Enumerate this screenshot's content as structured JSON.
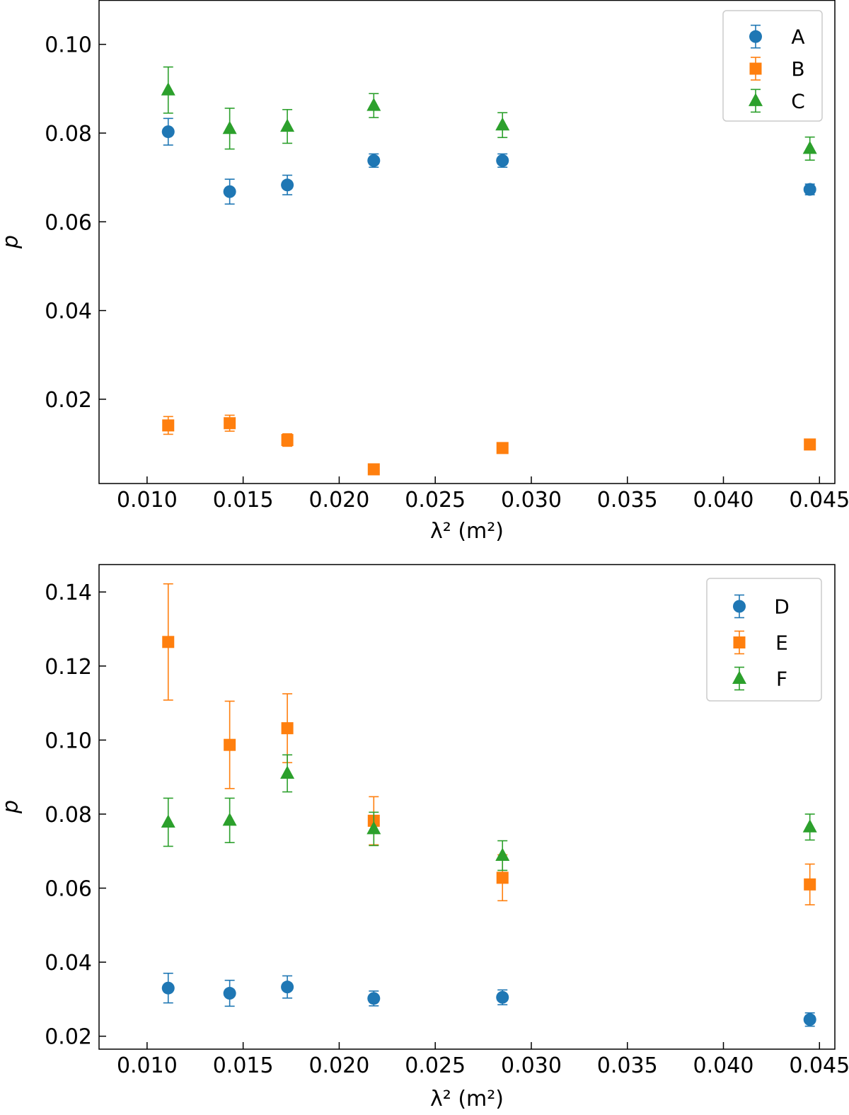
{
  "chart_data": [
    {
      "type": "scatter",
      "xlabel": "λ² (m²)",
      "ylabel": "p",
      "xlim": [
        0.0075,
        0.0458
      ],
      "ylim": [
        0.001,
        0.11
      ],
      "xticks": [
        0.01,
        0.015,
        0.02,
        0.025,
        0.03,
        0.035,
        0.04,
        0.045
      ],
      "xtick_labels": [
        "0.010",
        "0.015",
        "0.020",
        "0.025",
        "0.030",
        "0.035",
        "0.040",
        "0.045"
      ],
      "yticks": [
        0.02,
        0.04,
        0.06,
        0.08,
        0.1
      ],
      "ytick_labels": [
        "0.02",
        "0.04",
        "0.06",
        "0.08",
        "0.10"
      ],
      "grid": false,
      "legend": "top-right",
      "x": [
        0.0111,
        0.0143,
        0.0173,
        0.0218,
        0.0285,
        0.0445
      ],
      "series": [
        {
          "name": "A",
          "marker": "circle",
          "color": "#1f77b4",
          "values": [
            0.0803,
            0.0668,
            0.0683,
            0.0738,
            0.0738,
            0.0673
          ],
          "errors": [
            0.003,
            0.0028,
            0.0022,
            0.0015,
            0.0015,
            0.0012
          ]
        },
        {
          "name": "B",
          "marker": "square",
          "color": "#ff7f0e",
          "values": [
            0.0141,
            0.0146,
            0.0108,
            0.0042,
            0.009,
            0.0098
          ],
          "errors": [
            0.002,
            0.0018,
            0.0014,
            0.0008,
            0.0008,
            0.0008
          ]
        },
        {
          "name": "C",
          "marker": "triangle",
          "color": "#2ca02c",
          "values": [
            0.0897,
            0.081,
            0.0815,
            0.0862,
            0.0818,
            0.0765
          ],
          "errors": [
            0.0052,
            0.0046,
            0.0038,
            0.0027,
            0.0028,
            0.0026
          ]
        }
      ]
    },
    {
      "type": "scatter",
      "xlabel": "λ² (m²)",
      "ylabel": "p",
      "xlim": [
        0.0075,
        0.0458
      ],
      "ylim": [
        0.0165,
        0.1475
      ],
      "xticks": [
        0.01,
        0.015,
        0.02,
        0.025,
        0.03,
        0.035,
        0.04,
        0.045
      ],
      "xtick_labels": [
        "0.010",
        "0.015",
        "0.020",
        "0.025",
        "0.030",
        "0.035",
        "0.040",
        "0.045"
      ],
      "yticks": [
        0.02,
        0.04,
        0.06,
        0.08,
        0.1,
        0.12,
        0.14
      ],
      "ytick_labels": [
        "0.02",
        "0.04",
        "0.06",
        "0.08",
        "0.10",
        "0.12",
        "0.14"
      ],
      "grid": false,
      "legend": "top-right",
      "x": [
        0.0111,
        0.0143,
        0.0173,
        0.0218,
        0.0285,
        0.0445
      ],
      "series": [
        {
          "name": "D",
          "marker": "circle",
          "color": "#1f77b4",
          "values": [
            0.033,
            0.0316,
            0.0333,
            0.0302,
            0.0305,
            0.0245
          ],
          "errors": [
            0.004,
            0.0035,
            0.003,
            0.002,
            0.002,
            0.0018
          ]
        },
        {
          "name": "E",
          "marker": "square",
          "color": "#ff7f0e",
          "values": [
            0.1265,
            0.0987,
            0.1032,
            0.0782,
            0.0628,
            0.061
          ],
          "errors": [
            0.0157,
            0.0118,
            0.0093,
            0.0065,
            0.0062,
            0.0055
          ]
        },
        {
          "name": "F",
          "marker": "triangle",
          "color": "#2ca02c",
          "values": [
            0.0778,
            0.0783,
            0.091,
            0.076,
            0.0688,
            0.0765
          ],
          "errors": [
            0.0065,
            0.006,
            0.005,
            0.0045,
            0.004,
            0.0035
          ]
        }
      ]
    }
  ]
}
